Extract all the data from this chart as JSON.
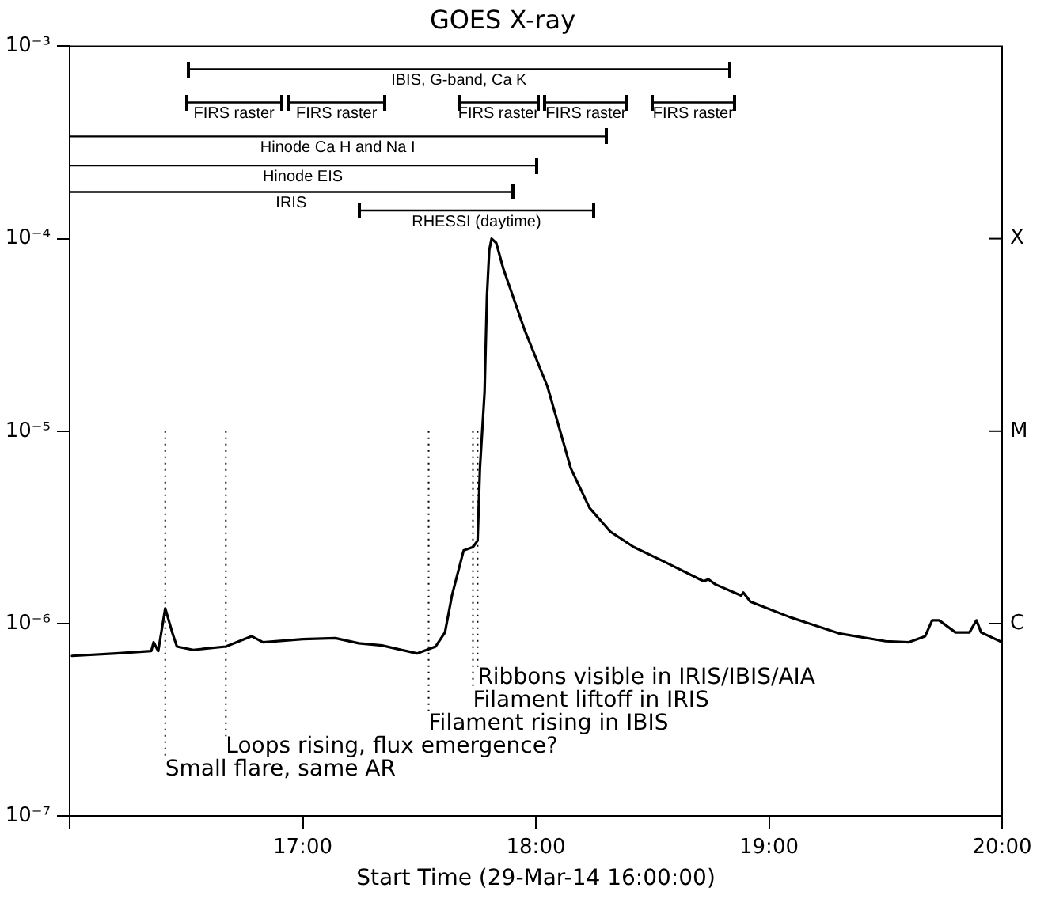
{
  "chart_data": {
    "type": "line",
    "title": "GOES X-ray",
    "xlabel": "Start Time (29-Mar-14 16:00:00)",
    "x": [
      16.01,
      16.2,
      16.35,
      16.36,
      16.38,
      16.41,
      16.44,
      16.46,
      16.53,
      16.67,
      16.78,
      16.83,
      17.0,
      17.14,
      17.24,
      17.34,
      17.49,
      17.57,
      17.61,
      17.64,
      17.69,
      17.73,
      17.75,
      17.76,
      17.78,
      17.79,
      17.8,
      17.81,
      17.83,
      17.86,
      17.95,
      18.05,
      18.15,
      18.23,
      18.32,
      18.42,
      18.55,
      18.72,
      18.74,
      18.77,
      18.88,
      18.89,
      18.92,
      19.09,
      19.3,
      19.5,
      19.6,
      19.67,
      19.7,
      19.73,
      19.8,
      19.86,
      19.89,
      19.91,
      20.0
    ],
    "series": [
      {
        "color": "#000000",
        "x": [
          16.51,
          18.83
        ],
        "values": [
          0.00076,
          0.00076
        ]
      },
      {
        "color": "#000000",
        "x": [
          16.5,
          16.91
        ],
        "values": [
          0.00051,
          0.00051
        ]
      },
      {
        "color": "#000000",
        "x": [
          16.94,
          17.35
        ],
        "values": [
          0.00051,
          0.00051
        ]
      },
      {
        "color": "#000000",
        "x": [
          17.67,
          18.01
        ],
        "values": [
          0.00051,
          0.00051
        ]
      },
      {
        "color": "#000000",
        "x": [
          18.04,
          18.39
        ],
        "values": [
          0.00051,
          0.00051
        ]
      },
      {
        "color": "#000000",
        "x": [
          18.5,
          18.85
        ],
        "values": [
          0.00051,
          0.00051
        ]
      },
      {
        "color": "#000000",
        "x": [
          16.0,
          18.3
        ],
        "values": [
          0.00034,
          0.00034
        ]
      },
      {
        "color": "#000000",
        "x": [
          16.0,
          18.0
        ],
        "values": [
          0.00024,
          0.00024
        ]
      },
      {
        "color": "#000000",
        "x": [
          16.0,
          17.9
        ],
        "values": [
          0.000175,
          0.000175
        ]
      },
      {
        "color": "#000000",
        "x": [
          17.24,
          18.25
        ],
        "values": [
          0.00014,
          0.00014
        ]
      },
      {
        "color": "#000000",
        "values": [
          6.8e-07,
          7e-07,
          7.2e-07,
          8e-07,
          7.2e-07,
          1.2e-06,
          9e-07,
          7.6e-07,
          7.3e-07,
          7.6e-07,
          8.6e-07,
          8e-07,
          8.3e-07,
          8.4e-07,
          7.9e-07,
          7.7e-07,
          7e-07,
          7.6e-07,
          9e-07,
          1.4e-06,
          2.4e-06,
          2.5e-06,
          2.7e-06,
          6.4e-06,
          1.6e-05,
          5e-05,
          8.7e-05,
          0.0001,
          9.5e-05,
          7e-05,
          3.4e-05,
          1.7e-05,
          6.4e-06,
          4e-06,
          3e-06,
          2.5e-06,
          2.1e-06,
          1.66e-06,
          1.7e-06,
          1.6e-06,
          1.4e-06,
          1.45e-06,
          1.3e-06,
          1.08e-06,
          8.9e-07,
          8.1e-07,
          8e-07,
          8.6e-07,
          1.04e-06,
          1.04e-06,
          9e-07,
          9e-07,
          1.04e-06,
          9e-07,
          8e-07
        ]
      }
    ],
    "xlim": [
      16,
      20
    ],
    "xticks": [
      {
        "value": 16,
        "label": null
      },
      {
        "value": 17,
        "label": "17:00"
      },
      {
        "value": 18,
        "label": "18:00"
      },
      {
        "value": 19,
        "label": "19:00"
      },
      {
        "value": 20,
        "label": "20:00"
      }
    ],
    "ylim": [
      1e-07,
      0.001
    ],
    "yticks": [
      {
        "value": 1e-07,
        "label": "10⁻⁷"
      },
      {
        "value": 1e-06,
        "label": "10⁻⁶"
      },
      {
        "value": 1e-05,
        "label": "10⁻⁵"
      },
      {
        "value": 0.0001,
        "label": "10⁻⁴"
      },
      {
        "value": 0.001,
        "label": "10⁻³"
      }
    ],
    "annotations": [
      "X",
      "M",
      "C",
      {
        "text": "IBIS, G-band, Ca K",
        "x": 17.67,
        "y": 0.00076
      },
      {
        "text": "FIRS raster",
        "x": 16.705,
        "y": 0.00051
      },
      {
        "text": "FIRS raster",
        "x": 17.145,
        "y": 0.00051
      },
      {
        "text": "FIRS raster",
        "x": 17.84,
        "y": 0.00051
      },
      {
        "text": "FIRS raster",
        "x": 18.215,
        "y": 0.00051
      },
      {
        "text": "FIRS raster",
        "x": 18.675,
        "y": 0.00051
      },
      {
        "text": "Hinode Ca H and Na I",
        "x": 17.15,
        "y": 0.00034
      },
      {
        "text": "Hinode EIS",
        "x": 17.0,
        "y": 0.00024
      },
      {
        "text": "IRIS",
        "x": 16.95,
        "y": 0.000175
      },
      {
        "text": "RHESSI (daytime)",
        "x": 17.745,
        "y": 0.00014
      }
    ],
    "log": true,
    "grid": false,
    "legend": false,
    "marker": "none",
    "line_style": "solid",
    "ref_lines": [
      {
        "axis": "x",
        "value": 16.41,
        "label": "Small flare, same AR",
        "line_style": "dotted"
      },
      {
        "axis": "x",
        "value": 16.67,
        "label": "Loops rising, flux emergence?",
        "line_style": "dotted"
      },
      {
        "axis": "x",
        "value": 17.54,
        "label": "Filament rising in IBIS",
        "line_style": "dotted"
      },
      {
        "axis": "x",
        "value": 17.73,
        "label": "Filament liftoff in IRIS",
        "line_style": "dotted"
      },
      {
        "axis": "x",
        "value": 17.75,
        "label": "Ribbons visible in IRIS/IBIS/AIA",
        "line_style": "dotted"
      }
    ]
  }
}
